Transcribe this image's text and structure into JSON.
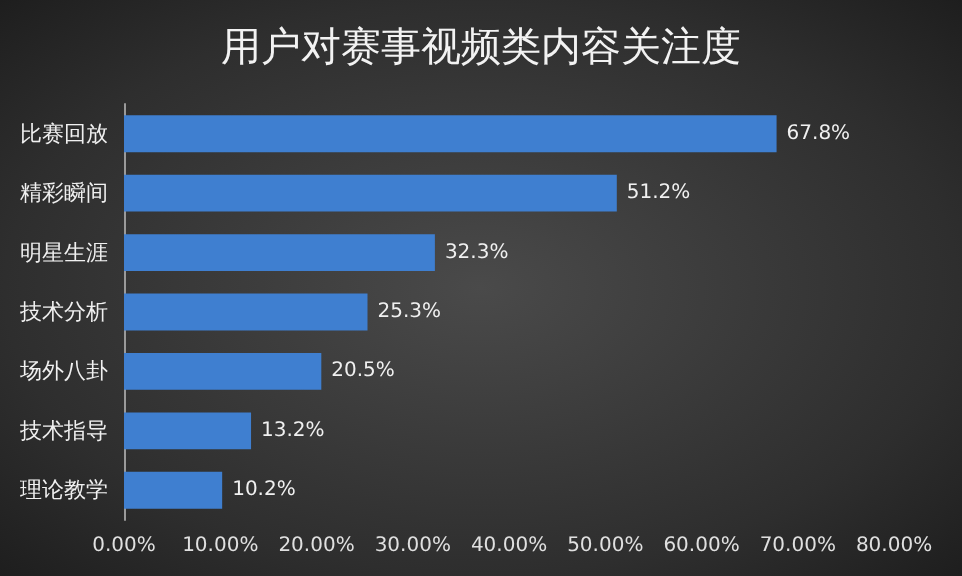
{
  "chart_data": {
    "type": "bar",
    "orientation": "horizontal",
    "title": "用户对赛事视频类内容关注度",
    "categories": [
      "比赛回放",
      "精彩瞬间",
      "明星生涯",
      "技术分析",
      "场外八卦",
      "技术指导",
      "理论教学"
    ],
    "values": [
      67.8,
      51.2,
      32.3,
      25.3,
      20.5,
      13.2,
      10.2
    ],
    "value_labels": [
      "67.8%",
      "51.2%",
      "32.3%",
      "25.3%",
      "20.5%",
      "13.2%",
      "10.2%"
    ],
    "color": "#3f7fd0",
    "xlim": [
      0,
      80
    ],
    "xticks": [
      {
        "value": 0,
        "label": "0.00%"
      },
      {
        "value": 10,
        "label": "10.00%"
      },
      {
        "value": 20,
        "label": "20.00%"
      },
      {
        "value": 30,
        "label": "30.00%"
      },
      {
        "value": 40,
        "label": "40.00%"
      },
      {
        "value": 50,
        "label": "50.00%"
      },
      {
        "value": 60,
        "label": "60.00%"
      },
      {
        "value": 70,
        "label": "70.00%"
      },
      {
        "value": 80,
        "label": "80.00%"
      }
    ],
    "grid": false
  }
}
